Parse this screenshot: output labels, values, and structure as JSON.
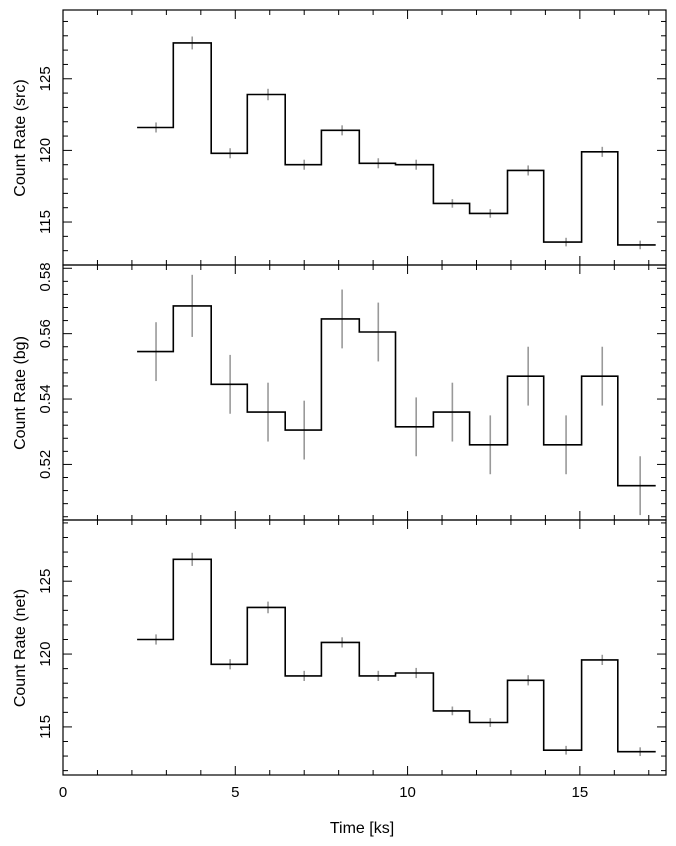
{
  "chart_data": {
    "type": "line",
    "style": "step-histogram with error bars, three vertically stacked panels sharing the x axis",
    "xlabel": "Time [ks]",
    "xlim": [
      0,
      17.5
    ],
    "xticks": [
      0,
      5,
      10,
      15
    ],
    "grid": false,
    "colors": {
      "step": "#000000",
      "errorbar": "#999999",
      "frame": "#000000"
    },
    "x_bin_edges": [
      2.15,
      3.2,
      4.3,
      5.35,
      6.45,
      7.5,
      8.6,
      9.65,
      10.75,
      11.8,
      12.9,
      13.95,
      15.05,
      16.1,
      17.2
    ],
    "x_centers": [
      2.7,
      3.75,
      4.85,
      5.95,
      7.0,
      8.1,
      9.15,
      10.25,
      11.3,
      12.4,
      13.5,
      14.6,
      15.65,
      16.75
    ],
    "panels": [
      {
        "ylabel": "Count Rate (src)",
        "ylim": [
          112,
          129.8
        ],
        "yticks": [
          115,
          120,
          125
        ],
        "values": [
          121.6,
          127.5,
          119.8,
          123.9,
          119.0,
          121.4,
          119.1,
          119.0,
          116.3,
          115.6,
          118.6,
          113.6,
          119.9,
          113.4
        ],
        "errors": [
          0.35,
          0.45,
          0.35,
          0.4,
          0.35,
          0.35,
          0.35,
          0.35,
          0.3,
          0.3,
          0.35,
          0.3,
          0.35,
          0.3
        ]
      },
      {
        "ylabel": "Count Rate (bg)",
        "ylim": [
          0.503,
          0.581
        ],
        "yticks": [
          0.52,
          0.54,
          0.56,
          0.58
        ],
        "values": [
          0.5545,
          0.5685,
          0.5445,
          0.536,
          0.5305,
          0.5645,
          0.5605,
          0.5315,
          0.536,
          0.526,
          0.547,
          0.526,
          0.547,
          0.5135
        ],
        "errors": [
          0.009,
          0.0095,
          0.009,
          0.009,
          0.009,
          0.009,
          0.009,
          0.009,
          0.009,
          0.009,
          0.009,
          0.009,
          0.009,
          0.009
        ]
      },
      {
        "ylabel": "Count Rate (net)",
        "ylim": [
          111.7,
          129.2
        ],
        "yticks": [
          115,
          120,
          125
        ],
        "values": [
          121.0,
          126.5,
          119.3,
          123.2,
          118.5,
          120.8,
          118.5,
          118.7,
          116.1,
          115.3,
          118.2,
          113.4,
          119.6,
          113.3
        ],
        "errors": [
          0.35,
          0.45,
          0.35,
          0.4,
          0.35,
          0.35,
          0.35,
          0.35,
          0.3,
          0.3,
          0.35,
          0.3,
          0.35,
          0.3
        ]
      }
    ]
  }
}
